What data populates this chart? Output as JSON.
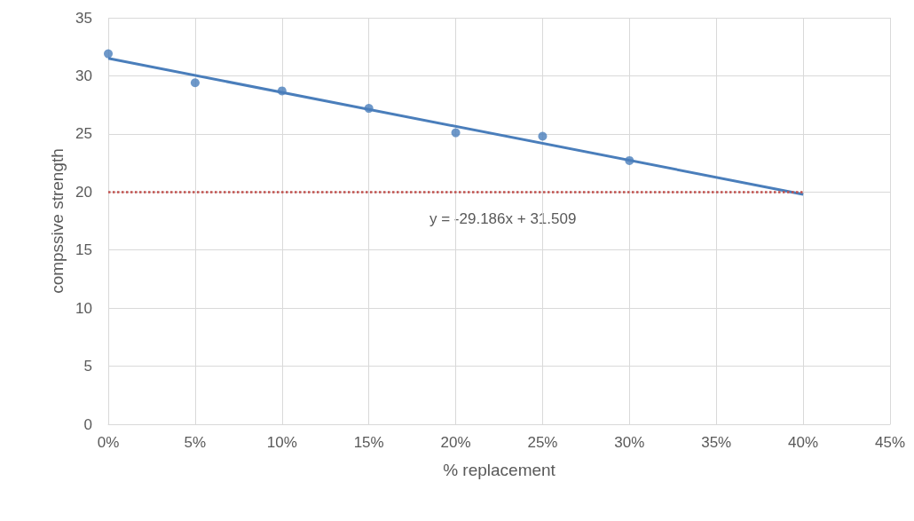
{
  "chart_data": {
    "type": "scatter",
    "xlabel": "% replacement",
    "ylabel": "compssive strength",
    "x": [
      0,
      0.05,
      0.1,
      0.15,
      0.2,
      0.25,
      0.3
    ],
    "series": [
      {
        "color": "#4a7ebb",
        "values": [
          31.9,
          29.4,
          28.7,
          27.2,
          25.1,
          24.8,
          22.7
        ],
        "marker": "circle"
      },
      {
        "type": "line",
        "color": "#4a7ebb",
        "x": [
          0,
          0.4
        ],
        "values": [
          31.5,
          19.8
        ],
        "marker": "none",
        "line_style": "solid"
      }
    ],
    "xlim": [
      0,
      0.45
    ],
    "xticks": [
      {
        "value": 0,
        "label": "0%"
      },
      {
        "value": 0.05,
        "label": "5%"
      },
      {
        "value": 0.1,
        "label": "10%"
      },
      {
        "value": 0.15,
        "label": "15%"
      },
      {
        "value": 0.2,
        "label": "20%"
      },
      {
        "value": 0.25,
        "label": "25%"
      },
      {
        "value": 0.3,
        "label": "30%"
      },
      {
        "value": 0.35,
        "label": "35%"
      },
      {
        "value": 0.4,
        "label": "40%"
      },
      {
        "value": 0.45,
        "label": "45%"
      }
    ],
    "ylim": [
      0,
      35
    ],
    "yticks": [
      0,
      5,
      10,
      15,
      20,
      25,
      30,
      35
    ],
    "ref_lines": [
      {
        "axis": "y",
        "value": 20,
        "color": "#c0504d",
        "line_style": "dotted"
      }
    ],
    "annotations": [
      "y = -29.186x + 31.509"
    ],
    "grid": true
  }
}
